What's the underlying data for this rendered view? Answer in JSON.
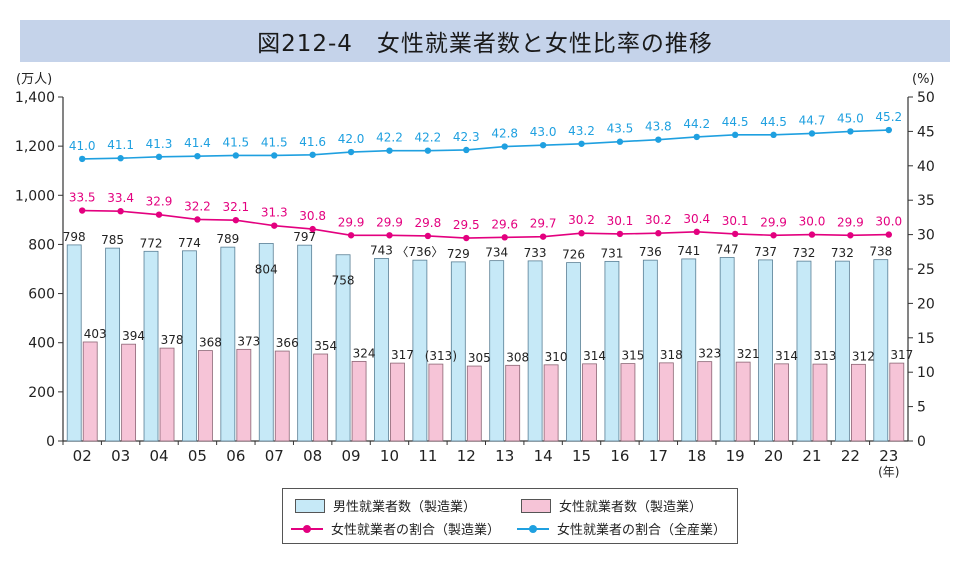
{
  "chart_data": {
    "type": "bar+line",
    "title": "図212-4　女性就業者数と女性比率の推移",
    "left_axis_unit": "(万人)",
    "right_axis_unit": "(%)",
    "x_unit": "(年)",
    "categories": [
      "02",
      "03",
      "04",
      "05",
      "06",
      "07",
      "08",
      "09",
      "10",
      "11",
      "12",
      "13",
      "14",
      "15",
      "16",
      "17",
      "18",
      "19",
      "20",
      "21",
      "22",
      "23"
    ],
    "left_ticks": [
      "0",
      "200",
      "400",
      "600",
      "800",
      "1,000",
      "1,200",
      "1,400"
    ],
    "right_ticks": [
      "0",
      "5",
      "10",
      "15",
      "20",
      "25",
      "30",
      "35",
      "40",
      "45",
      "50"
    ],
    "ylim_left": [
      0,
      1400
    ],
    "ylim_right": [
      0,
      50
    ],
    "series": [
      {
        "name": "男性就業者数（製造業）",
        "kind": "bar",
        "color": "#c6e9f7",
        "values": [
          798,
          785,
          772,
          774,
          789,
          804,
          797,
          758,
          743,
          736,
          729,
          734,
          733,
          726,
          731,
          736,
          741,
          747,
          737,
          732,
          732,
          738
        ],
        "labels": [
          "798",
          "785",
          "772",
          "774",
          "789",
          "804",
          "797",
          "758",
          "743",
          "〈736〉",
          "729",
          "734",
          "733",
          "726",
          "731",
          "736",
          "741",
          "747",
          "737",
          "732",
          "732",
          "738"
        ]
      },
      {
        "name": "女性就業者数（製造業）",
        "kind": "bar",
        "color": "#f6c4d7",
        "values": [
          403,
          394,
          378,
          368,
          373,
          366,
          354,
          324,
          317,
          313,
          305,
          308,
          310,
          314,
          315,
          318,
          323,
          321,
          314,
          313,
          312,
          317
        ],
        "labels": [
          "403",
          "394",
          "378",
          "368",
          "373",
          "366",
          "354",
          "324",
          "317",
          "(313)",
          "305",
          "308",
          "310",
          "314",
          "315",
          "318",
          "323",
          "321",
          "314",
          "313",
          "312",
          "317"
        ]
      },
      {
        "name": "女性就業者の割合（製造業）",
        "kind": "line",
        "color": "#e3007f",
        "values": [
          33.5,
          33.4,
          32.9,
          32.2,
          32.1,
          31.3,
          30.8,
          29.9,
          29.9,
          29.8,
          29.5,
          29.6,
          29.7,
          30.2,
          30.1,
          30.2,
          30.4,
          30.1,
          29.9,
          30.0,
          29.9,
          30.0
        ],
        "labels": [
          "33.5",
          "33.4",
          "32.9",
          "32.2",
          "32.1",
          "31.3",
          "30.8",
          "29.9",
          "29.9",
          "29.8",
          "29.5",
          "29.6",
          "29.7",
          "30.2",
          "30.1",
          "30.2",
          "30.4",
          "30.1",
          "29.9",
          "30.0",
          "29.9",
          "30.0"
        ]
      },
      {
        "name": "女性就業者の割合（全産業）",
        "kind": "line",
        "color": "#1fa0e0",
        "values": [
          41.0,
          41.1,
          41.3,
          41.4,
          41.5,
          41.5,
          41.6,
          42.0,
          42.2,
          42.2,
          42.3,
          42.8,
          43.0,
          43.2,
          43.5,
          43.8,
          44.2,
          44.5,
          44.5,
          44.7,
          45.0,
          45.2
        ],
        "labels": [
          "41.0",
          "41.1",
          "41.3",
          "41.4",
          "41.5",
          "41.5",
          "41.6",
          "42.0",
          "42.2",
          "42.2",
          "42.3",
          "42.8",
          "43.0",
          "43.2",
          "43.5",
          "43.8",
          "44.2",
          "44.5",
          "44.5",
          "44.7",
          "45.0",
          "45.2"
        ]
      }
    ]
  }
}
